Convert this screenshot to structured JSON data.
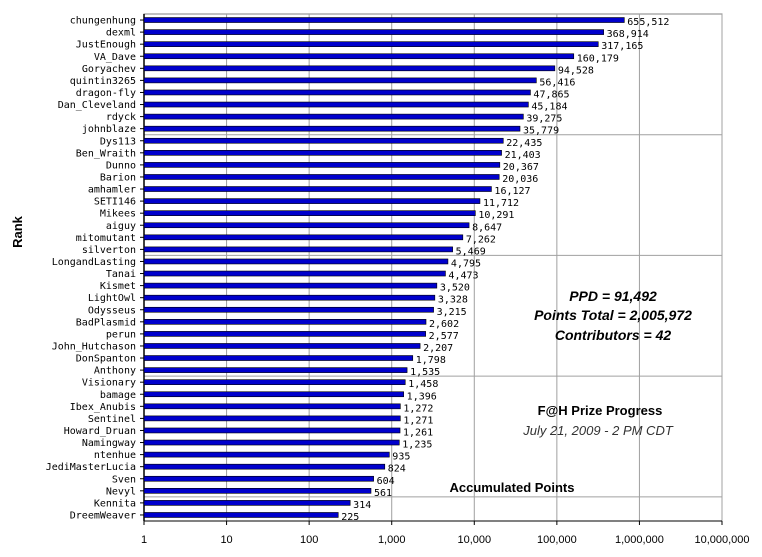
{
  "chart_data": {
    "type": "bar",
    "orientation": "horizontal",
    "xscale": "log",
    "xlim": [
      1,
      10000000
    ],
    "xticks": [
      "1",
      "10",
      "100",
      "1,000",
      "10,000",
      "100,000",
      "1,000,000",
      "10,000,000"
    ],
    "xlabel": "Accumulated Points",
    "ylabel": "Rank",
    "grid": "vertical",
    "bar_color": "#0000cc",
    "categories": [
      "chungenhung",
      "dexml",
      "JustEnough",
      "VA_Dave",
      "Goryachev",
      "quintin3265",
      "dragon-fly",
      "Dan_Cleveland",
      "rdyck",
      "johnblaze",
      "Dys113",
      "Ben_Wraith",
      "Dunno",
      "Barion",
      "amhamler",
      "SETI146",
      "Mikees",
      "aiguy",
      "mitomutant",
      "silverton",
      "LongandLasting",
      "Tanai",
      "Kismet",
      "LightOwl",
      "Odysseus",
      "BadPlasmid",
      "perun",
      "John_Hutchason",
      "DonSpanton",
      "Anthony",
      "Visionary",
      "bamage",
      "Ibex_Anubis",
      "Sentinel",
      "Howard_Druan",
      "Namingway",
      "ntenhue",
      "JediMasterLucia",
      "Sven",
      "Nevyl",
      "Kennita",
      "DreemWeaver"
    ],
    "values": [
      655512,
      368914,
      317165,
      160179,
      94528,
      56416,
      47865,
      45184,
      39275,
      35779,
      22435,
      21403,
      20367,
      20036,
      16127,
      11712,
      10291,
      8647,
      7262,
      5469,
      4795,
      4473,
      3520,
      3328,
      3215,
      2602,
      2577,
      2207,
      1798,
      1535,
      1458,
      1396,
      1272,
      1271,
      1261,
      1235,
      935,
      824,
      604,
      561,
      314,
      225
    ],
    "value_labels": [
      "655,512",
      "368,914",
      "317,165",
      "160,179",
      "94,528",
      "56,416",
      "47,865",
      "45,184",
      "39,275",
      "35,779",
      "22,435",
      "21,403",
      "20,367",
      "20,036",
      "16,127",
      "11,712",
      "10,291",
      "8,647",
      "7,262",
      "5,469",
      "4,795",
      "4,473",
      "3,520",
      "3,328",
      "3,215",
      "2,602",
      "2,577",
      "2,207",
      "1,798",
      "1,535",
      "1,458",
      "1,396",
      "1,272",
      "1,271",
      "1,261",
      "1,235",
      "935",
      "824",
      "604",
      "561",
      "314",
      "225"
    ],
    "stats": [
      "PPD = 91,492",
      "Points Total = 2,005,972",
      "Contributors = 42"
    ],
    "annotation_title": "F@H Prize Progress",
    "annotation_subtitle": "July 21, 2009 - 2 PM CDT"
  }
}
